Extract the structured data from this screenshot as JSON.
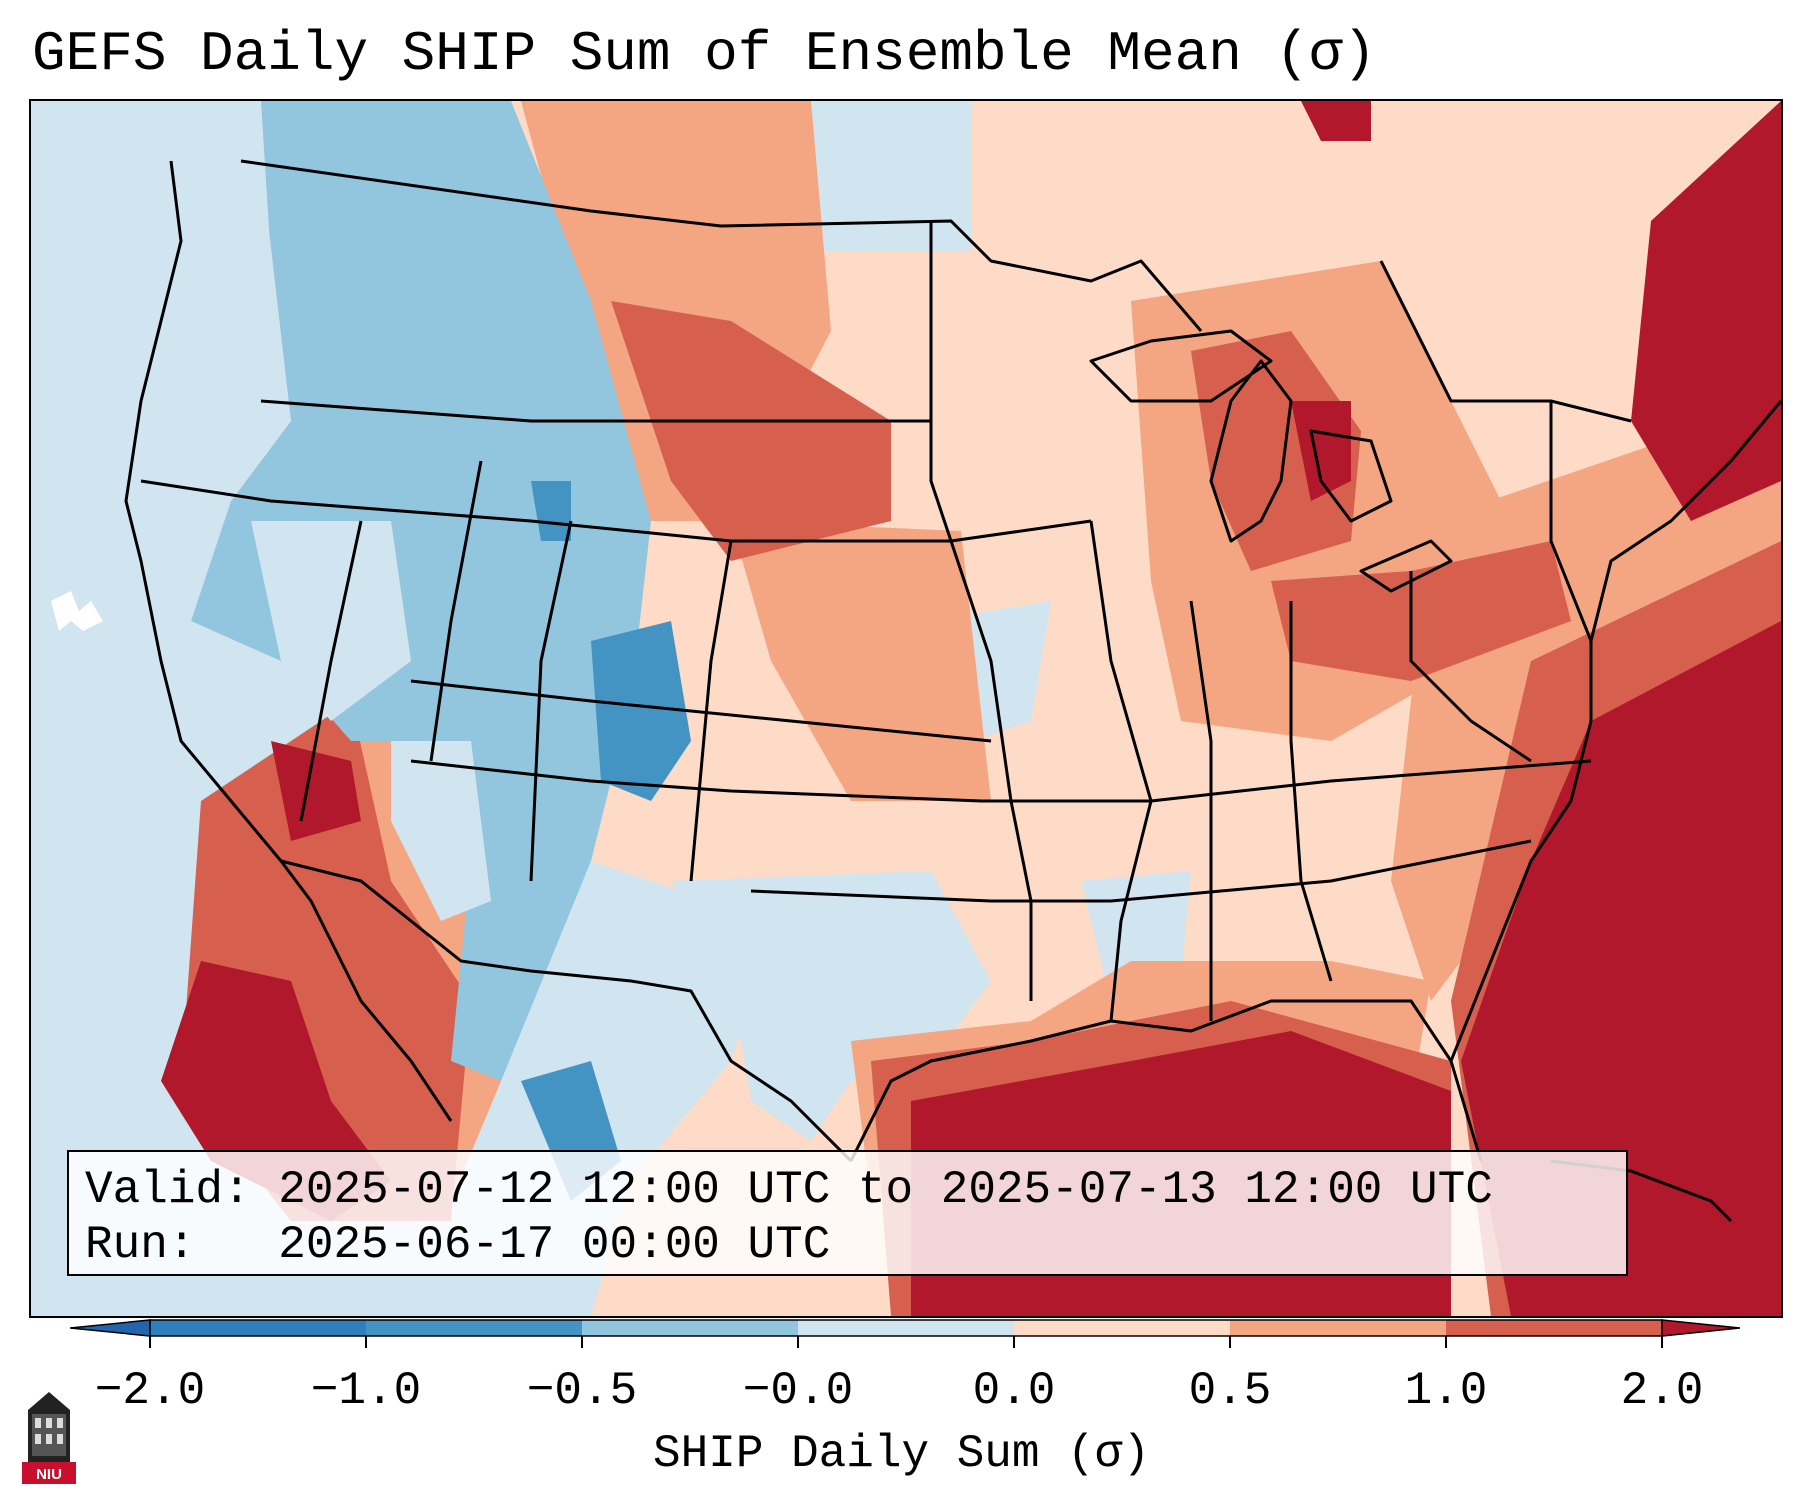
{
  "title": "GEFS Daily SHIP Sum of Ensemble Mean (σ)",
  "info": {
    "valid_line": "Valid: 2025-07-12 12:00 UTC to 2025-07-13 12:00 UTC",
    "run_line": "Run:   2025-06-17 00:00 UTC"
  },
  "colorbar": {
    "label": "SHIP Daily Sum (σ)",
    "ticks": [
      "−2.0",
      "−1.0",
      "−0.5",
      "−0.0",
      "0.0",
      "0.5",
      "1.0",
      "2.0"
    ],
    "colors": [
      "#2f7fbc",
      "#4393c3",
      "#92c5de",
      "#d1e5f0",
      "#ffffff",
      "#fddbc7",
      "#f4a582",
      "#d6604d",
      "#b2182b"
    ],
    "under_color": "#2166ac",
    "over_color": "#b2182b"
  },
  "logo": {
    "text": "NIU",
    "icon": "university-tower-icon",
    "color": "#c8102e"
  }
}
